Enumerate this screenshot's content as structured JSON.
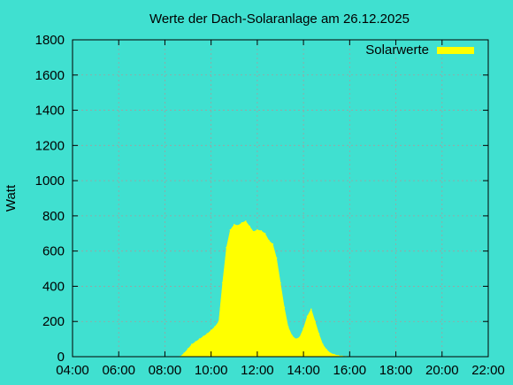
{
  "chart_data": {
    "type": "area",
    "title": "Werte der Dach-Solaranlage am 26.12.2025",
    "xlabel": "",
    "ylabel": "Watt",
    "x_ticks": [
      "04:00",
      "06:00",
      "08:00",
      "10:00",
      "12:00",
      "14:00",
      "16:00",
      "18:00",
      "20:00",
      "22:00"
    ],
    "y_ticks": [
      "0",
      "200",
      "400",
      "600",
      "800",
      "1000",
      "1200",
      "1400",
      "1600",
      "1800"
    ],
    "xlim": [
      "04:00",
      "22:00"
    ],
    "ylim": [
      0,
      1800
    ],
    "grid": true,
    "legend": "top-right",
    "colors": {
      "background": "#40e0d0",
      "series": "#ffff00",
      "grid": "#a0a0a0",
      "axis": "#000000"
    },
    "series": [
      {
        "name": "Solarwerte",
        "x": [
          "08:40",
          "08:50",
          "09:00",
          "09:10",
          "09:20",
          "09:30",
          "09:40",
          "09:50",
          "10:00",
          "10:10",
          "10:20",
          "10:30",
          "10:40",
          "10:50",
          "11:00",
          "11:10",
          "11:20",
          "11:30",
          "11:40",
          "11:50",
          "12:00",
          "12:10",
          "12:20",
          "12:30",
          "12:40",
          "12:50",
          "13:00",
          "13:10",
          "13:20",
          "13:30",
          "13:40",
          "13:50",
          "14:00",
          "14:10",
          "14:20",
          "14:30",
          "14:40",
          "14:50",
          "15:00",
          "15:10",
          "15:20",
          "15:30",
          "15:40",
          "15:50",
          "16:00"
        ],
        "values": [
          0,
          20,
          45,
          70,
          85,
          100,
          115,
          130,
          150,
          170,
          200,
          420,
          620,
          720,
          750,
          745,
          760,
          770,
          740,
          710,
          720,
          715,
          700,
          660,
          640,
          560,
          420,
          280,
          170,
          120,
          100,
          110,
          160,
          230,
          270,
          200,
          130,
          70,
          40,
          20,
          12,
          6,
          3,
          1,
          0
        ]
      }
    ]
  }
}
